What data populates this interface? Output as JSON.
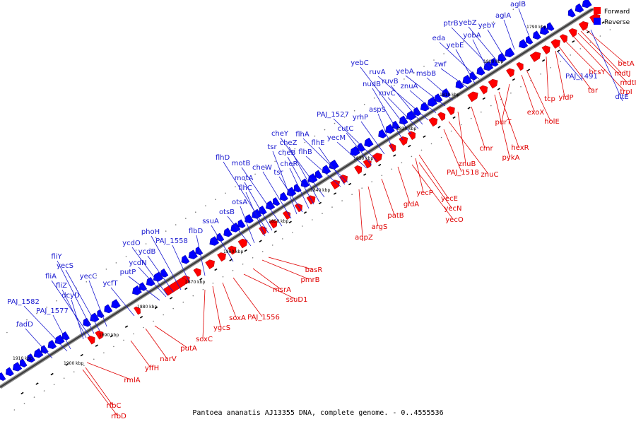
{
  "caption": "Pantoea ananatis AJ13355 DNA, complete genome. - 0..4555536",
  "legend": [
    {
      "label": "Forward",
      "color": "#ff0000"
    },
    {
      "label": "Reverse",
      "color": "#0000ff"
    }
  ],
  "colors": {
    "forward": "#ff0000",
    "reverse": "#0000ff",
    "forward_line": "#e00000",
    "reverse_line": "#1a1ad0",
    "backbone": "#555555"
  },
  "kbp_ticks": [
    "1790 kbp",
    "1800 kbp",
    "1810 kbp",
    "1820 kbp",
    "1830 kbp",
    "1840 kbp",
    "1850 kbp",
    "1860 kbp",
    "1870 kbp",
    "1880 kbp",
    "1890 kbp",
    "1900 kbp",
    "1910 kbp"
  ],
  "forward_genes": [
    "betA",
    "mdtJ",
    "mdtI",
    "trpI",
    "bcsY",
    "tar",
    "tcp",
    "yidP",
    "exoX",
    "holE",
    "purT",
    "hexR",
    "pykA",
    "cmr",
    "znuB",
    "znuC",
    "PAJ_1518",
    "yecE",
    "yecP",
    "yecN",
    "yecO",
    "gldA",
    "patB",
    "argS",
    "aqpZ",
    "basR",
    "pmrB",
    "msrA",
    "ssuD1",
    "PAJ_1556",
    "soxA",
    "ygcS",
    "soxC",
    "putA",
    "narV",
    "yffH",
    "rmlA",
    "rfbC",
    "rfbD"
  ],
  "reverse_genes": [
    "dltE",
    "PAJ_1491",
    "aglB",
    "aglA",
    "yebY",
    "yebZ",
    "ptrB",
    "yobA",
    "eda",
    "yebE",
    "zwf",
    "msbB",
    "yebA",
    "znuA",
    "ruvA",
    "ruvB",
    "ruvC",
    "yebC",
    "nudB",
    "aspS",
    "yrhP",
    "PAJ_1527",
    "cutC",
    "yecM",
    "flhA",
    "flhB",
    "flhE",
    "cheY",
    "cheZ",
    "cheB",
    "cheR",
    "tsr",
    "cheW",
    "tsr",
    "motB",
    "motA",
    "flhD",
    "flhC",
    "otsA",
    "otsB",
    "ssuA",
    "flbD",
    "phoH",
    "PAJ_1558",
    "ycdO",
    "ycdB",
    "ycdN",
    "putP",
    "ycfT",
    "yecC",
    "yecS",
    "fliY",
    "fliA",
    "fliZ",
    "dcyD",
    "PAJ_1582",
    "PAJ_1577",
    "fadD"
  ]
}
